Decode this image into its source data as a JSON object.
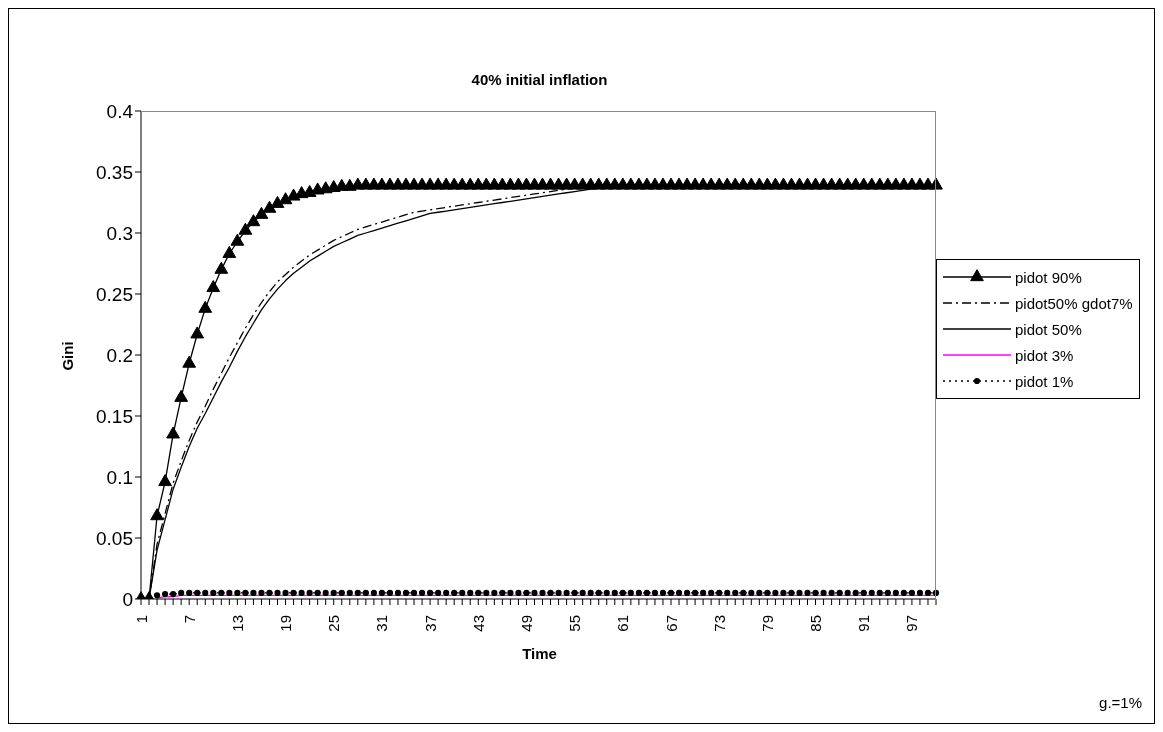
{
  "chart_data": {
    "type": "line",
    "title": "40% initial inflation",
    "xlabel": "Time",
    "ylabel": "Gini",
    "categories": [
      "1",
      null,
      null,
      null,
      null,
      null,
      "7",
      null,
      null,
      null,
      null,
      null,
      "13",
      null,
      null,
      null,
      null,
      null,
      "19",
      null,
      null,
      null,
      null,
      null,
      "25",
      null,
      null,
      null,
      null,
      null,
      "31",
      null,
      null,
      null,
      null,
      null,
      "37",
      null,
      null,
      null,
      null,
      null,
      "43",
      null,
      null,
      null,
      null,
      null,
      "49",
      null,
      null,
      null,
      null,
      null,
      "55",
      null,
      null,
      null,
      null,
      null,
      "61",
      null,
      null,
      null,
      null,
      null,
      "67",
      null,
      null,
      null,
      null,
      null,
      "73",
      null,
      null,
      null,
      null,
      null,
      "79",
      null,
      null,
      null,
      null,
      null,
      "85",
      null,
      null,
      null,
      null,
      null,
      "91",
      null,
      null,
      null,
      null,
      null,
      "97",
      null,
      null,
      null
    ],
    "ylim": [
      0,
      0.4
    ],
    "yticks": [
      0,
      0.05,
      0.1,
      0.15,
      0.2,
      0.25,
      0.3,
      0.35,
      0.4
    ],
    "grid": false,
    "legend": "right",
    "annotations": [
      "g.=1%"
    ],
    "series": [
      {
        "name": "pidot 90%",
        "color": "#000000",
        "marker": "triangle",
        "line_style": "solid",
        "values": [
          0,
          0,
          0.068,
          0.096,
          0.135,
          0.165,
          0.193,
          0.217,
          0.238,
          0.255,
          0.27,
          0.283,
          0.293,
          0.302,
          0.309,
          0.315,
          0.32,
          0.324,
          0.327,
          0.33,
          0.332,
          0.333,
          0.335,
          0.336,
          0.337,
          0.338,
          0.338,
          0.339,
          0.339,
          0.339,
          0.339,
          0.339,
          0.339,
          0.339,
          0.339,
          0.339,
          0.339,
          0.339,
          0.339,
          0.339,
          0.339,
          0.339,
          0.339,
          0.339,
          0.339,
          0.339,
          0.339,
          0.339,
          0.339,
          0.339,
          0.339,
          0.339,
          0.339,
          0.339,
          0.339,
          0.339,
          0.339,
          0.339,
          0.339,
          0.339,
          0.339,
          0.339,
          0.339,
          0.339,
          0.339,
          0.339,
          0.339,
          0.339,
          0.339,
          0.339,
          0.339,
          0.339,
          0.339,
          0.339,
          0.339,
          0.339,
          0.339,
          0.339,
          0.339,
          0.339,
          0.339,
          0.339,
          0.339,
          0.339,
          0.339,
          0.339,
          0.339,
          0.339,
          0.339,
          0.339,
          0.339,
          0.339,
          0.339,
          0.339,
          0.339,
          0.339,
          0.339,
          0.339,
          0.339,
          0.339
        ]
      },
      {
        "name": "pidot50% gdot7%",
        "color": "#000000",
        "marker": "none",
        "line_style": "dashdot",
        "values": [
          0,
          0,
          0.045,
          0.07,
          0.095,
          0.113,
          0.13,
          0.145,
          0.158,
          0.172,
          0.185,
          0.198,
          0.21,
          0.222,
          0.233,
          0.243,
          0.252,
          0.26,
          0.266,
          0.272,
          0.277,
          0.282,
          0.286,
          0.29,
          0.294,
          0.297,
          0.3,
          0.303,
          0.305,
          0.307,
          0.309,
          0.311,
          0.313,
          0.315,
          0.317,
          0.318,
          0.319,
          0.32,
          0.321,
          0.322,
          0.323,
          0.324,
          0.325,
          0.326,
          0.327,
          0.328,
          0.329,
          0.33,
          0.331,
          0.332,
          0.333,
          0.334,
          0.335,
          0.336,
          0.337,
          0.338,
          0.338,
          0.339,
          0.339,
          0.339,
          0.339,
          0.339,
          0.339,
          0.339,
          0.339,
          0.339,
          0.339,
          0.339,
          0.339,
          0.339,
          0.339,
          0.339,
          0.339,
          0.339,
          0.339,
          0.339,
          0.339,
          0.339,
          0.339,
          0.339,
          0.339,
          0.339,
          0.339,
          0.339,
          0.339,
          0.339,
          0.339,
          0.339,
          0.339,
          0.339,
          0.339,
          0.339,
          0.339,
          0.339,
          0.339,
          0.339,
          0.339,
          0.339,
          0.339,
          0.339
        ]
      },
      {
        "name": "pidot 50%",
        "color": "#000000",
        "marker": "none",
        "line_style": "solid",
        "values": [
          0,
          0,
          0.04,
          0.065,
          0.09,
          0.108,
          0.125,
          0.14,
          0.152,
          0.165,
          0.178,
          0.19,
          0.203,
          0.215,
          0.226,
          0.237,
          0.246,
          0.254,
          0.261,
          0.267,
          0.272,
          0.277,
          0.281,
          0.285,
          0.289,
          0.292,
          0.295,
          0.298,
          0.3,
          0.302,
          0.304,
          0.306,
          0.308,
          0.31,
          0.312,
          0.314,
          0.316,
          0.317,
          0.318,
          0.319,
          0.32,
          0.321,
          0.322,
          0.323,
          0.324,
          0.325,
          0.326,
          0.327,
          0.328,
          0.329,
          0.33,
          0.331,
          0.332,
          0.333,
          0.334,
          0.335,
          0.336,
          0.337,
          0.338,
          0.338,
          0.339,
          0.339,
          0.339,
          0.339,
          0.339,
          0.339,
          0.339,
          0.339,
          0.339,
          0.339,
          0.339,
          0.339,
          0.339,
          0.339,
          0.339,
          0.339,
          0.339,
          0.339,
          0.339,
          0.339,
          0.339,
          0.339,
          0.339,
          0.339,
          0.339,
          0.339,
          0.339,
          0.339,
          0.339,
          0.339,
          0.339,
          0.339,
          0.339,
          0.339,
          0.339,
          0.339,
          0.339,
          0.339,
          0.339,
          0.339
        ]
      },
      {
        "name": "pidot 3%",
        "color": "#ff00ff",
        "marker": "none",
        "line_style": "solid",
        "values": [
          null,
          null,
          0.001,
          0.002,
          0.002,
          0.003,
          0.003,
          0.003,
          0.003,
          0.003,
          0.003,
          0.003,
          0.003,
          0.003,
          0.003,
          0.003,
          0.003,
          0.003,
          0.003,
          0.003,
          0.003,
          0.003,
          0.003,
          0.003,
          0.003,
          0.003,
          0.003,
          0.003,
          0.003,
          0.003,
          0.003,
          0.003,
          0.003,
          0.003,
          0.003,
          0.003,
          0.003,
          0.003,
          0.003,
          0.003,
          0.003,
          0.003,
          0.003,
          0.003,
          0.003,
          0.003,
          0.003,
          0.003,
          0.003,
          0.003,
          0.003,
          0.003,
          0.003,
          0.003,
          0.003,
          0.003,
          0.003,
          0.003,
          0.003,
          0.003,
          0.003,
          0.003,
          0.003,
          0.003,
          0.003,
          0.003,
          0.003,
          0.003,
          0.003,
          0.003,
          0.003,
          0.003,
          0.003,
          0.003,
          0.003,
          0.003,
          0.003,
          0.003,
          0.003,
          0.003,
          0.003,
          0.003,
          0.003,
          0.003,
          0.003,
          0.003,
          0.003,
          0.003,
          0.003,
          0.003,
          0.003,
          0.003,
          0.003,
          0.003,
          0.003,
          0.003,
          0.003,
          0.003,
          0.003,
          0.003
        ]
      },
      {
        "name": "pidot 1%",
        "color": "#000000",
        "marker": "circle",
        "line_style": "dotted",
        "values": [
          null,
          null,
          0.003,
          0.004,
          0.004,
          0.005,
          0.005,
          0.005,
          0.005,
          0.005,
          0.005,
          0.005,
          0.005,
          0.005,
          0.005,
          0.005,
          0.005,
          0.005,
          0.005,
          0.005,
          0.005,
          0.005,
          0.005,
          0.005,
          0.005,
          0.005,
          0.005,
          0.005,
          0.005,
          0.005,
          0.005,
          0.005,
          0.005,
          0.005,
          0.005,
          0.005,
          0.005,
          0.005,
          0.005,
          0.005,
          0.005,
          0.005,
          0.005,
          0.005,
          0.005,
          0.005,
          0.005,
          0.005,
          0.005,
          0.005,
          0.005,
          0.005,
          0.005,
          0.005,
          0.005,
          0.005,
          0.005,
          0.005,
          0.005,
          0.005,
          0.005,
          0.005,
          0.005,
          0.005,
          0.005,
          0.005,
          0.005,
          0.005,
          0.005,
          0.005,
          0.005,
          0.005,
          0.005,
          0.005,
          0.005,
          0.005,
          0.005,
          0.005,
          0.005,
          0.005,
          0.005,
          0.005,
          0.005,
          0.005,
          0.005,
          0.005,
          0.005,
          0.005,
          0.005,
          0.005,
          0.005,
          0.005,
          0.005,
          0.005,
          0.005,
          0.005,
          0.005,
          0.005,
          0.005,
          0.005
        ]
      }
    ]
  }
}
